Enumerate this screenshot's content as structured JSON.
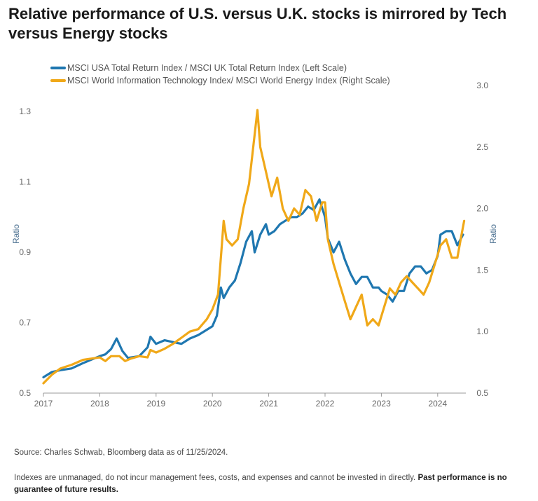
{
  "page": {
    "title": "Relative performance of U.S. versus U.K. stocks is mirrored by Tech versus Energy stocks",
    "source": "Source: Charles Schwab, Bloomberg data as of 11/25/2024.",
    "disclaimer": "Indexes are unmanaged, do not incur management fees, costs, and expenses and cannot be invested in directly.",
    "disclaimer_bold": "Past performance is no guarantee of future results."
  },
  "chart_data": {
    "type": "line",
    "ylabel_left": "Ratio",
    "ylabel_right": "Ratio",
    "xlim": [
      2017,
      2024.5
    ],
    "ylim_left": [
      0.5,
      1.35
    ],
    "ylim_right": [
      0.5,
      3.0
    ],
    "x_ticks": [
      "2017",
      "2018",
      "2019",
      "2020",
      "2021",
      "2022",
      "2023",
      "2024"
    ],
    "y_ticks_left": [
      "0.5",
      "0.7",
      "0.9",
      "1.1",
      "1.3"
    ],
    "y_ticks_right": [
      "0.5",
      "1.0",
      "1.5",
      "2.0",
      "2.5",
      "3.0"
    ],
    "legend_position": "top-left",
    "grid": false,
    "series": [
      {
        "name": "MSCI USA Total Return Index / MSCI UK Total Return Index (Left Scale)",
        "axis": "left",
        "color": "#1f77b0",
        "points": [
          [
            2017.0,
            0.545
          ],
          [
            2017.15,
            0.56
          ],
          [
            2017.3,
            0.565
          ],
          [
            2017.5,
            0.57
          ],
          [
            2017.7,
            0.585
          ],
          [
            2017.85,
            0.595
          ],
          [
            2018.0,
            0.605
          ],
          [
            2018.1,
            0.61
          ],
          [
            2018.2,
            0.625
          ],
          [
            2018.3,
            0.655
          ],
          [
            2018.4,
            0.62
          ],
          [
            2018.5,
            0.6
          ],
          [
            2018.7,
            0.605
          ],
          [
            2018.85,
            0.63
          ],
          [
            2018.9,
            0.66
          ],
          [
            2019.0,
            0.64
          ],
          [
            2019.15,
            0.65
          ],
          [
            2019.3,
            0.645
          ],
          [
            2019.45,
            0.64
          ],
          [
            2019.6,
            0.655
          ],
          [
            2019.75,
            0.665
          ],
          [
            2019.9,
            0.68
          ],
          [
            2020.0,
            0.69
          ],
          [
            2020.08,
            0.72
          ],
          [
            2020.15,
            0.8
          ],
          [
            2020.2,
            0.77
          ],
          [
            2020.3,
            0.8
          ],
          [
            2020.4,
            0.82
          ],
          [
            2020.5,
            0.87
          ],
          [
            2020.6,
            0.93
          ],
          [
            2020.7,
            0.96
          ],
          [
            2020.75,
            0.9
          ],
          [
            2020.85,
            0.95
          ],
          [
            2020.95,
            0.98
          ],
          [
            2021.0,
            0.95
          ],
          [
            2021.1,
            0.96
          ],
          [
            2021.2,
            0.98
          ],
          [
            2021.3,
            0.99
          ],
          [
            2021.4,
            1.0
          ],
          [
            2021.5,
            1.0
          ],
          [
            2021.6,
            1.01
          ],
          [
            2021.7,
            1.03
          ],
          [
            2021.8,
            1.02
          ],
          [
            2021.9,
            1.05
          ],
          [
            2022.0,
            1.0
          ],
          [
            2022.05,
            0.94
          ],
          [
            2022.15,
            0.9
          ],
          [
            2022.25,
            0.93
          ],
          [
            2022.35,
            0.88
          ],
          [
            2022.45,
            0.84
          ],
          [
            2022.55,
            0.81
          ],
          [
            2022.65,
            0.83
          ],
          [
            2022.75,
            0.83
          ],
          [
            2022.85,
            0.8
          ],
          [
            2022.95,
            0.8
          ],
          [
            2023.0,
            0.79
          ],
          [
            2023.1,
            0.78
          ],
          [
            2023.2,
            0.76
          ],
          [
            2023.3,
            0.79
          ],
          [
            2023.4,
            0.79
          ],
          [
            2023.5,
            0.84
          ],
          [
            2023.6,
            0.86
          ],
          [
            2023.7,
            0.86
          ],
          [
            2023.8,
            0.84
          ],
          [
            2023.9,
            0.85
          ],
          [
            2024.0,
            0.89
          ],
          [
            2024.05,
            0.95
          ],
          [
            2024.15,
            0.96
          ],
          [
            2024.25,
            0.96
          ],
          [
            2024.35,
            0.92
          ],
          [
            2024.45,
            0.95
          ]
        ]
      },
      {
        "name": "MSCI World Information Technology Index/ MSCI World Energy Index (Right Scale)",
        "axis": "right",
        "color": "#f0a818",
        "points": [
          [
            2017.0,
            0.58
          ],
          [
            2017.15,
            0.65
          ],
          [
            2017.3,
            0.7
          ],
          [
            2017.5,
            0.73
          ],
          [
            2017.7,
            0.77
          ],
          [
            2017.85,
            0.78
          ],
          [
            2018.0,
            0.79
          ],
          [
            2018.1,
            0.76
          ],
          [
            2018.2,
            0.8
          ],
          [
            2018.35,
            0.8
          ],
          [
            2018.45,
            0.76
          ],
          [
            2018.55,
            0.78
          ],
          [
            2018.7,
            0.8
          ],
          [
            2018.85,
            0.79
          ],
          [
            2018.9,
            0.85
          ],
          [
            2019.0,
            0.83
          ],
          [
            2019.15,
            0.86
          ],
          [
            2019.3,
            0.9
          ],
          [
            2019.45,
            0.95
          ],
          [
            2019.6,
            1.0
          ],
          [
            2019.75,
            1.02
          ],
          [
            2019.9,
            1.1
          ],
          [
            2020.0,
            1.18
          ],
          [
            2020.1,
            1.3
          ],
          [
            2020.15,
            1.6
          ],
          [
            2020.2,
            1.9
          ],
          [
            2020.25,
            1.75
          ],
          [
            2020.35,
            1.7
          ],
          [
            2020.45,
            1.75
          ],
          [
            2020.55,
            2.0
          ],
          [
            2020.65,
            2.2
          ],
          [
            2020.75,
            2.6
          ],
          [
            2020.8,
            2.8
          ],
          [
            2020.85,
            2.5
          ],
          [
            2020.95,
            2.3
          ],
          [
            2021.05,
            2.1
          ],
          [
            2021.15,
            2.25
          ],
          [
            2021.25,
            2.0
          ],
          [
            2021.35,
            1.9
          ],
          [
            2021.45,
            2.0
          ],
          [
            2021.55,
            1.95
          ],
          [
            2021.65,
            2.15
          ],
          [
            2021.75,
            2.1
          ],
          [
            2021.85,
            1.9
          ],
          [
            2021.95,
            2.05
          ],
          [
            2022.0,
            2.05
          ],
          [
            2022.05,
            1.75
          ],
          [
            2022.15,
            1.55
          ],
          [
            2022.25,
            1.4
          ],
          [
            2022.35,
            1.25
          ],
          [
            2022.45,
            1.1
          ],
          [
            2022.55,
            1.2
          ],
          [
            2022.65,
            1.3
          ],
          [
            2022.75,
            1.05
          ],
          [
            2022.85,
            1.1
          ],
          [
            2022.95,
            1.05
          ],
          [
            2023.05,
            1.2
          ],
          [
            2023.15,
            1.35
          ],
          [
            2023.25,
            1.3
          ],
          [
            2023.35,
            1.4
          ],
          [
            2023.45,
            1.45
          ],
          [
            2023.55,
            1.4
          ],
          [
            2023.65,
            1.35
          ],
          [
            2023.75,
            1.3
          ],
          [
            2023.85,
            1.4
          ],
          [
            2023.95,
            1.55
          ],
          [
            2024.05,
            1.7
          ],
          [
            2024.15,
            1.75
          ],
          [
            2024.25,
            1.6
          ],
          [
            2024.35,
            1.6
          ],
          [
            2024.42,
            1.78
          ],
          [
            2024.47,
            1.9
          ]
        ]
      }
    ]
  }
}
